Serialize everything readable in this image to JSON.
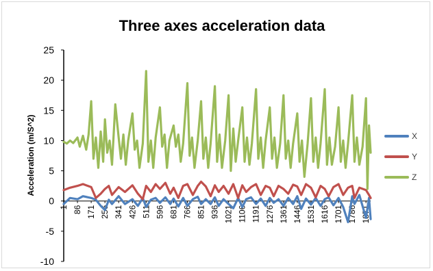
{
  "chart_data": {
    "type": "line",
    "title": "Three axes acceleration data",
    "xlabel": "",
    "ylabel": "Acceleration  (m/S^2)",
    "ylim": [
      -10,
      25
    ],
    "yticks": [
      -10,
      -5,
      0,
      5,
      10,
      15,
      20,
      25
    ],
    "xlim": [
      1,
      1900
    ],
    "xticks": [
      1,
      86,
      171,
      256,
      341,
      426,
      511,
      596,
      681,
      766,
      851,
      936,
      1021,
      1106,
      1191,
      1276,
      1361,
      1446,
      1531,
      1616,
      1701,
      1786,
      1871
    ],
    "grid": false,
    "legend_position": "right",
    "series": [
      {
        "name": "X",
        "color": "#4f81bd",
        "x": [
          1,
          40,
          86,
          120,
          171,
          200,
          230,
          256,
          280,
          300,
          341,
          380,
          426,
          460,
          490,
          511,
          540,
          570,
          596,
          630,
          660,
          681,
          710,
          740,
          766,
          800,
          830,
          851,
          880,
          910,
          936,
          960,
          990,
          1021,
          1050,
          1080,
          1106,
          1130,
          1160,
          1191,
          1220,
          1250,
          1276,
          1300,
          1330,
          1361,
          1390,
          1420,
          1446,
          1470,
          1500,
          1531,
          1560,
          1590,
          1616,
          1640,
          1670,
          1701,
          1730,
          1760,
          1786,
          1800,
          1830,
          1871,
          1890,
          1900
        ],
        "values": [
          -0.5,
          0.5,
          0.3,
          0.8,
          0.5,
          0.2,
          -0.8,
          -1.5,
          0.2,
          -0.5,
          0.8,
          -0.5,
          0.3,
          -0.8,
          0.5,
          -1.0,
          0.2,
          0.5,
          -0.3,
          0.6,
          -0.5,
          0.4,
          -0.9,
          0.5,
          -0.8,
          0.3,
          0.7,
          -0.5,
          0.3,
          -0.5,
          0.6,
          -0.8,
          0.3,
          -0.5,
          -1.2,
          0.5,
          -1.0,
          0.3,
          0.6,
          -0.5,
          0.4,
          -0.8,
          0.5,
          -0.3,
          0.3,
          -0.8,
          0.5,
          -0.5,
          0.8,
          -1.3,
          0.4,
          -0.6,
          0.5,
          -0.8,
          0.3,
          0.6,
          -0.7,
          0.5,
          -1.0,
          -3.5,
          0.8,
          -0.5,
          1.0,
          -2.8,
          0.5,
          -3.0
        ]
      },
      {
        "name": "Y",
        "color": "#c0504d",
        "x": [
          1,
          40,
          86,
          120,
          171,
          200,
          230,
          256,
          280,
          300,
          341,
          380,
          426,
          460,
          490,
          511,
          540,
          570,
          596,
          630,
          660,
          681,
          710,
          740,
          766,
          800,
          830,
          851,
          880,
          910,
          936,
          960,
          990,
          1021,
          1050,
          1080,
          1106,
          1130,
          1160,
          1191,
          1220,
          1250,
          1276,
          1300,
          1330,
          1361,
          1390,
          1420,
          1446,
          1470,
          1500,
          1531,
          1560,
          1590,
          1616,
          1640,
          1670,
          1701,
          1730,
          1760,
          1786,
          1800,
          1830,
          1871,
          1890,
          1900
        ],
        "values": [
          1.8,
          2.2,
          2.5,
          2.8,
          2.3,
          0.5,
          1.2,
          2.0,
          2.5,
          1.0,
          2.3,
          1.5,
          2.6,
          1.2,
          0.3,
          2.5,
          1.5,
          2.8,
          2.0,
          3.0,
          1.2,
          2.2,
          0.5,
          2.5,
          2.8,
          1.0,
          2.5,
          3.2,
          2.4,
          0.8,
          2.6,
          1.5,
          2.5,
          1.2,
          2.8,
          0.5,
          2.6,
          1.5,
          2.3,
          2.8,
          1.0,
          2.5,
          2.2,
          0.8,
          2.5,
          2.0,
          1.2,
          2.7,
          2.4,
          1.0,
          2.8,
          2.2,
          0.6,
          2.5,
          2.0,
          0.8,
          2.3,
          2.8,
          1.0,
          2.2,
          2.5,
          0.5,
          2.2,
          1.8,
          1.0,
          0.5
        ]
      },
      {
        "name": "Z",
        "color": "#9bbb59",
        "x": [
          1,
          20,
          40,
          60,
          86,
          100,
          120,
          140,
          155,
          171,
          185,
          200,
          215,
          230,
          245,
          256,
          270,
          285,
          300,
          320,
          341,
          355,
          370,
          385,
          400,
          426,
          440,
          455,
          470,
          490,
          511,
          525,
          540,
          555,
          570,
          596,
          610,
          625,
          640,
          655,
          681,
          695,
          710,
          725,
          740,
          766,
          780,
          795,
          810,
          830,
          851,
          865,
          880,
          895,
          910,
          936,
          950,
          965,
          980,
          1000,
          1021,
          1035,
          1050,
          1065,
          1080,
          1106,
          1120,
          1135,
          1150,
          1165,
          1191,
          1205,
          1220,
          1235,
          1250,
          1276,
          1290,
          1305,
          1320,
          1340,
          1361,
          1375,
          1390,
          1405,
          1420,
          1446,
          1460,
          1475,
          1490,
          1510,
          1531,
          1545,
          1560,
          1575,
          1590,
          1616,
          1630,
          1645,
          1660,
          1680,
          1701,
          1715,
          1730,
          1745,
          1760,
          1786,
          1800,
          1815,
          1830,
          1850,
          1871,
          1880,
          1890,
          1900
        ],
        "values": [
          9.8,
          9.5,
          10.0,
          9.6,
          10.5,
          9.0,
          10.8,
          8.5,
          11.0,
          16.5,
          7.0,
          10.5,
          5.5,
          11.5,
          6.5,
          13.5,
          8.0,
          10.0,
          6.0,
          16.0,
          10.5,
          7.0,
          11.0,
          6.0,
          10.0,
          14.5,
          8.5,
          10.0,
          5.5,
          9.5,
          21.5,
          6.5,
          10.0,
          5.5,
          10.5,
          15.5,
          9.0,
          11.0,
          5.5,
          10.0,
          12.5,
          9.0,
          11.0,
          6.5,
          9.5,
          19.5,
          7.5,
          10.5,
          5.5,
          10.0,
          16.5,
          7.0,
          10.5,
          5.5,
          9.5,
          19.0,
          6.5,
          11.0,
          5.5,
          10.0,
          17.5,
          5.0,
          12.0,
          6.5,
          10.0,
          15.5,
          6.5,
          10.5,
          6.0,
          9.5,
          18.5,
          7.0,
          10.5,
          5.5,
          10.0,
          15.5,
          7.0,
          10.5,
          5.5,
          9.5,
          17.5,
          7.0,
          10.0,
          5.5,
          9.5,
          14.5,
          6.5,
          10.0,
          4.0,
          9.5,
          17.0,
          6.5,
          10.5,
          5.5,
          9.5,
          18.5,
          6.0,
          10.5,
          6.0,
          9.0,
          15.5,
          6.5,
          10.0,
          5.5,
          9.5,
          17.5,
          6.5,
          10.5,
          6.0,
          9.0,
          17.0,
          2.0,
          12.5,
          8.0
        ]
      }
    ]
  }
}
